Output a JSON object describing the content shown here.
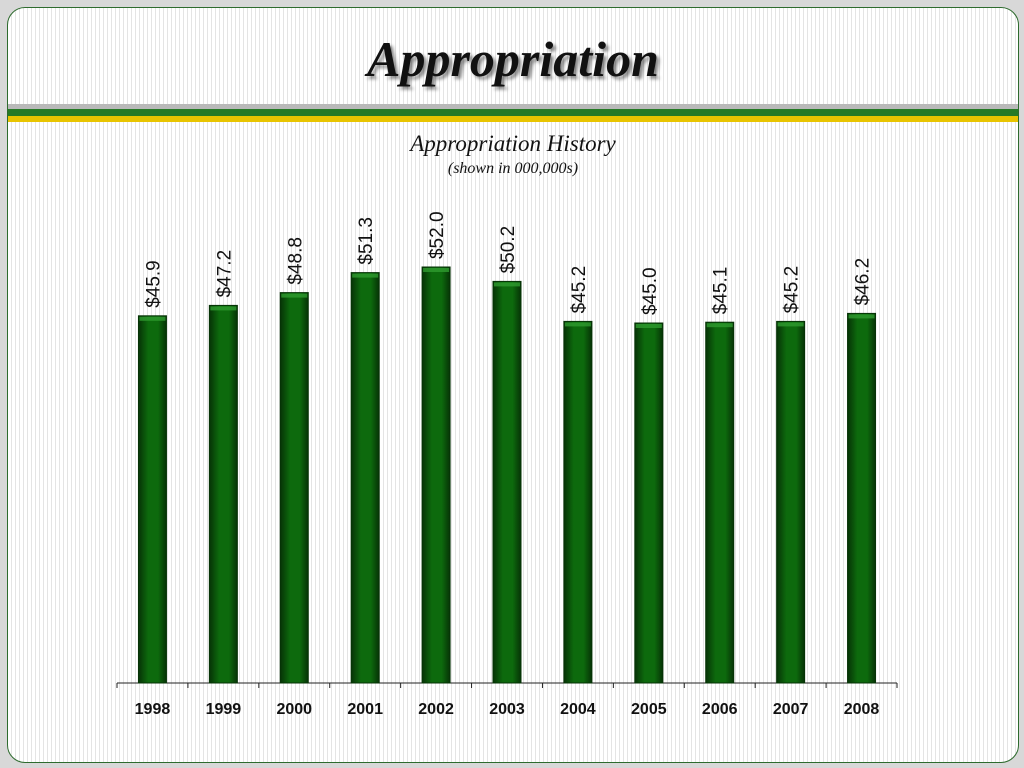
{
  "slide": {
    "title": "Appropriation"
  },
  "colors": {
    "bar_fill": "#0d6a0d",
    "bar_edge": "#063306",
    "bar_highlight": "#2f9b2f",
    "stripe_grey": "#b9b9b9",
    "stripe_green": "#267a26",
    "stripe_yellow": "#e8c400"
  },
  "chart_data": {
    "type": "bar",
    "title": "Appropriation History",
    "subtitle": "(shown in 000,000s)",
    "categories": [
      "1998",
      "1999",
      "2000",
      "2001",
      "2002",
      "2003",
      "2004",
      "2005",
      "2006",
      "2007",
      "2008"
    ],
    "values": [
      45.9,
      47.2,
      48.8,
      51.3,
      52.0,
      50.2,
      45.2,
      45.0,
      45.1,
      45.2,
      46.2
    ],
    "data_labels": [
      "$45.9",
      "$47.2",
      "$48.8",
      "$51.3",
      "$52.0",
      "$50.2",
      "$45.2",
      "$45.0",
      "$45.1",
      "$45.2",
      "$46.2"
    ],
    "xlabel": "",
    "ylabel": "",
    "ylim": [
      0,
      58
    ],
    "grid": false,
    "legend": "none"
  }
}
